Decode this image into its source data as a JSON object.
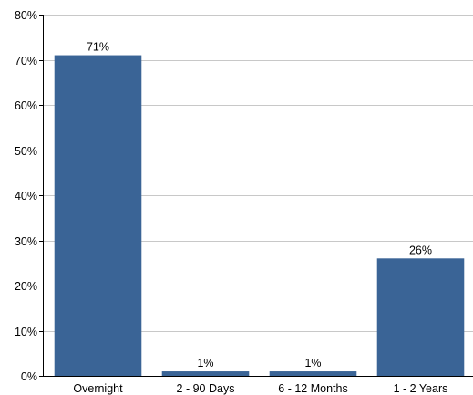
{
  "chart_data": {
    "type": "bar",
    "categories": [
      "Overnight",
      "2 - 90 Days",
      "6 - 12 Months",
      "1 - 2 Years"
    ],
    "values": [
      71,
      1,
      1,
      26
    ],
    "data_labels": [
      "71%",
      "1%",
      "1%",
      "26%"
    ],
    "ylim": [
      0,
      80
    ],
    "yticks": [
      0,
      10,
      20,
      30,
      40,
      50,
      60,
      70,
      80
    ],
    "ytick_labels": [
      "0%",
      "10%",
      "20%",
      "30%",
      "40%",
      "50%",
      "60%",
      "70%",
      "80%"
    ],
    "grid": true,
    "legend": "none",
    "colors": {
      "bar": "#3a6496",
      "grid": "#c8c8c8",
      "axis": "#000000"
    }
  }
}
